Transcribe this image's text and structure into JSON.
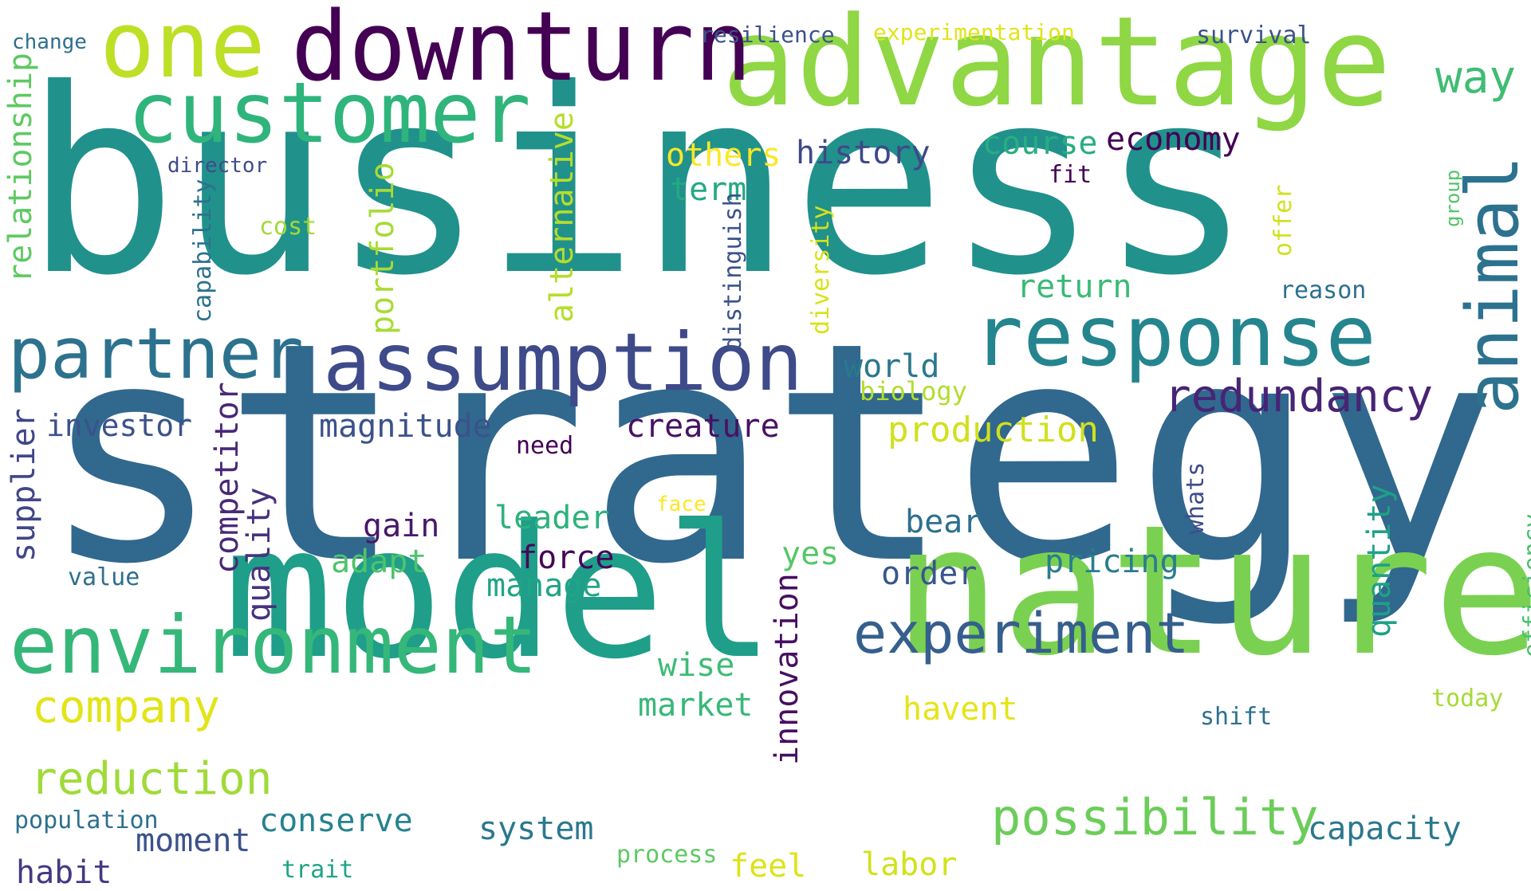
{
  "words": [
    {
      "id": "strategy",
      "text": "strategy",
      "color": "#31688e"
    },
    {
      "id": "business",
      "text": "business",
      "color": "#21918c"
    },
    {
      "id": "model",
      "text": "model",
      "color": "#1f9e89"
    },
    {
      "id": "nature",
      "text": "nature",
      "color": "#7ad151"
    },
    {
      "id": "advantage",
      "text": "advantage",
      "color": "#8fd744"
    },
    {
      "id": "downturn",
      "text": "downturn",
      "color": "#440154"
    },
    {
      "id": "one",
      "text": "one",
      "color": "#bddf26"
    },
    {
      "id": "customer",
      "text": "customer",
      "color": "#2fb47c"
    },
    {
      "id": "response",
      "text": "response",
      "color": "#25858e"
    },
    {
      "id": "assumption",
      "text": "assumption",
      "color": "#3e4a89"
    },
    {
      "id": "environment",
      "text": "environment",
      "color": "#35b779"
    },
    {
      "id": "partner",
      "text": "partner",
      "color": "#2c728e"
    },
    {
      "id": "animal",
      "text": "animal",
      "color": "#2c728e"
    },
    {
      "id": "experiment",
      "text": "experiment",
      "color": "#355f8d"
    },
    {
      "id": "redundancy",
      "text": "redundancy",
      "color": "#482475"
    },
    {
      "id": "company",
      "text": "company",
      "color": "#e2e418"
    },
    {
      "id": "possibility",
      "text": "possibility",
      "color": "#6ccd5a"
    },
    {
      "id": "reduction",
      "text": "reduction",
      "color": "#a0da39"
    },
    {
      "id": "way",
      "text": "way",
      "color": "#3fbc73"
    },
    {
      "id": "production",
      "text": "production",
      "color": "#d0e11c"
    },
    {
      "id": "relationship",
      "text": "relationship",
      "color": "#5ec962"
    },
    {
      "id": "alternative",
      "text": "alternative",
      "color": "#b5de2b"
    },
    {
      "id": "portfolio",
      "text": "portfolio",
      "color": "#a8db34"
    },
    {
      "id": "competitor",
      "text": "competitor",
      "color": "#482878"
    },
    {
      "id": "quality",
      "text": "quality",
      "color": "#46327e"
    },
    {
      "id": "innovation",
      "text": "innovation",
      "color": "#470e61"
    },
    {
      "id": "conserve",
      "text": "conserve",
      "color": "#26828e"
    },
    {
      "id": "system",
      "text": "system",
      "color": "#2a788e"
    },
    {
      "id": "capacity",
      "text": "capacity",
      "color": "#2a788e"
    },
    {
      "id": "creature",
      "text": "creature",
      "color": "#471164"
    },
    {
      "id": "magnitude",
      "text": "magnitude",
      "color": "#3b528b"
    },
    {
      "id": "pricing",
      "text": "pricing",
      "color": "#287d8e"
    },
    {
      "id": "return",
      "text": "return",
      "color": "#3aba76"
    },
    {
      "id": "history",
      "text": "history",
      "color": "#3e4989"
    },
    {
      "id": "economy",
      "text": "economy",
      "color": "#440154"
    },
    {
      "id": "course",
      "text": "course",
      "color": "#27ad81"
    },
    {
      "id": "others",
      "text": "others",
      "color": "#fde725"
    },
    {
      "id": "term",
      "text": "term",
      "color": "#23a983"
    },
    {
      "id": "investor",
      "text": "investor",
      "color": "#3b528b"
    },
    {
      "id": "supplier",
      "text": "supplier",
      "color": "#404688"
    },
    {
      "id": "gain",
      "text": "gain",
      "color": "#48186a"
    },
    {
      "id": "adapt",
      "text": "adapt",
      "color": "#4ec36b"
    },
    {
      "id": "leader",
      "text": "leader",
      "color": "#2db27d"
    },
    {
      "id": "force",
      "text": "force",
      "color": "#450559"
    },
    {
      "id": "manage",
      "text": "manage",
      "color": "#20a486"
    },
    {
      "id": "yes",
      "text": "yes",
      "color": "#56c667"
    },
    {
      "id": "bear",
      "text": "bear",
      "color": "#2d708e"
    },
    {
      "id": "order",
      "text": "order",
      "color": "#39558c"
    },
    {
      "id": "wise",
      "text": "wise",
      "color": "#3dbc74"
    },
    {
      "id": "market",
      "text": "market",
      "color": "#37b878"
    },
    {
      "id": "havent",
      "text": "havent",
      "color": "#e5e419"
    },
    {
      "id": "moment",
      "text": "moment",
      "color": "#3b528b"
    },
    {
      "id": "habit",
      "text": "habit",
      "color": "#443983"
    },
    {
      "id": "feel",
      "text": "feel",
      "color": "#dde318"
    },
    {
      "id": "labor",
      "text": "labor",
      "color": "#d2e21b"
    },
    {
      "id": "quantity",
      "text": "quantity",
      "color": "#1fa088"
    },
    {
      "id": "world",
      "text": "world",
      "color": "#2a788e"
    },
    {
      "id": "biology",
      "text": "biology",
      "color": "#b2dd2d"
    },
    {
      "id": "distinguish",
      "text": "distinguish",
      "color": "#3b528b"
    },
    {
      "id": "diversity",
      "text": "diversity",
      "color": "#d8e219"
    },
    {
      "id": "capability",
      "text": "capability",
      "color": "#2d718e"
    },
    {
      "id": "cost",
      "text": "cost",
      "color": "#a2da37"
    },
    {
      "id": "director",
      "text": "director",
      "color": "#3e4c8a"
    },
    {
      "id": "change",
      "text": "change",
      "color": "#2d708e"
    },
    {
      "id": "resilience",
      "text": "resilience",
      "color": "#3b528b"
    },
    {
      "id": "experimentation",
      "text": "experimentation",
      "color": "#e1e418"
    },
    {
      "id": "survival",
      "text": "survival",
      "color": "#3b528b"
    },
    {
      "id": "fit",
      "text": "fit",
      "color": "#440154"
    },
    {
      "id": "offer",
      "text": "offer",
      "color": "#d0e11c"
    },
    {
      "id": "group",
      "text": "group",
      "color": "#52c569"
    },
    {
      "id": "reason",
      "text": "reason",
      "color": "#2d708e"
    },
    {
      "id": "need",
      "text": "need",
      "color": "#440154"
    },
    {
      "id": "face",
      "text": "face",
      "color": "#fde725"
    },
    {
      "id": "whats",
      "text": "whats",
      "color": "#3e4c8a"
    },
    {
      "id": "value",
      "text": "value",
      "color": "#2d708e"
    },
    {
      "id": "efficiency",
      "text": "efficiency",
      "color": "#4ac16d"
    },
    {
      "id": "today",
      "text": "today",
      "color": "#a5db36"
    },
    {
      "id": "shift",
      "text": "shift",
      "color": "#2d708e"
    },
    {
      "id": "population",
      "text": "population",
      "color": "#2d708e"
    },
    {
      "id": "trait",
      "text": "trait",
      "color": "#20a386"
    },
    {
      "id": "process",
      "text": "process",
      "color": "#5ec962"
    }
  ]
}
